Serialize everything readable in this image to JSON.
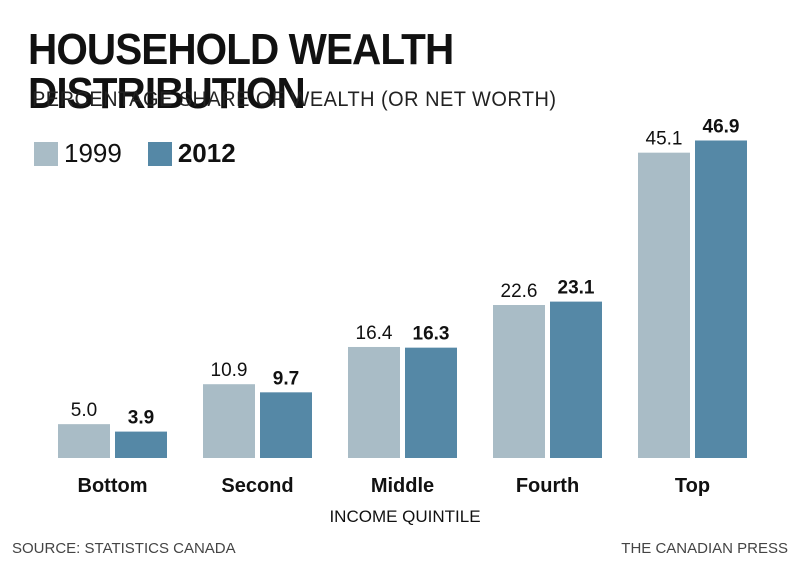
{
  "chart_data": {
    "type": "bar",
    "title": "HOUSEHOLD WEALTH DISTRIBUTION",
    "subtitle": "PERCENTAGE SHARE OF WEALTH (OR NET WORTH)",
    "xlabel": "INCOME QUINTILE",
    "ylabel": "",
    "categories": [
      "Bottom",
      "Second",
      "Middle",
      "Fourth",
      "Top"
    ],
    "series": [
      {
        "name": "1999",
        "color": "#a9bcc6",
        "values": [
          5.0,
          10.9,
          16.4,
          22.6,
          45.1
        ],
        "labels": [
          "5.0",
          "10.9",
          "16.4",
          "22.6",
          "45.1"
        ]
      },
      {
        "name": "2012",
        "color": "#5588a6",
        "values": [
          3.9,
          9.7,
          16.3,
          23.1,
          46.9
        ],
        "labels": [
          "3.9",
          "9.7",
          "16.3",
          "23.1",
          "46.9"
        ]
      }
    ],
    "ylim": [
      0,
      50
    ],
    "grid": false,
    "legend": "top-left"
  },
  "footer": {
    "source": "SOURCE: STATISTICS CANADA",
    "credit": "THE CANADIAN PRESS"
  }
}
